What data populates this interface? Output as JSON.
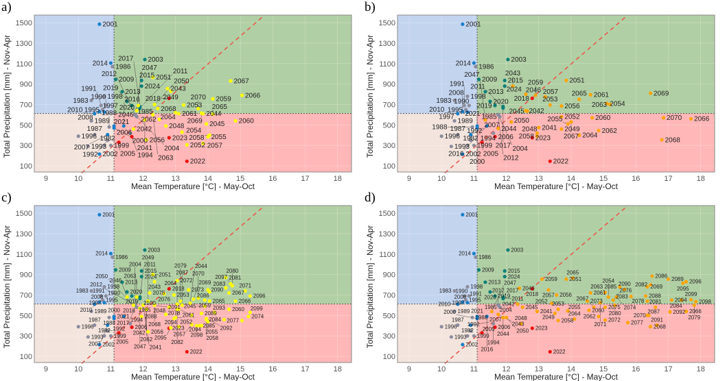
{
  "chart_data": {
    "type": "scatter",
    "xlabel": "Mean Temperature [°C] - May-Oct",
    "ylabel": "Total Precipitation [mm] - Nov-Apr",
    "xlim": [
      8.64,
      18.43
    ],
    "ylim": [
      40,
      1574
    ],
    "xticks": [
      9,
      10,
      11,
      12,
      13,
      14,
      15,
      16,
      17,
      18
    ],
    "yticks": [
      100,
      300,
      500,
      700,
      900,
      1100,
      1300,
      1500
    ],
    "thresholds": {
      "temperature": 11.1,
      "precipitation": 612
    },
    "ref_line": [
      [
        10.1,
        30
      ],
      [
        15.75,
        1574
      ]
    ],
    "colors": {
      "blue": "#1a7fc9",
      "grey": "#8c8c9c",
      "teal": "#0d7f78",
      "red": "#ee1111",
      "yellow": "#ffff00",
      "orange": "#ffa500",
      "quad_wet_cool": "#c3d4ef",
      "quad_wet_warm": "#b1cfa4",
      "quad_dry_cool": "#f3e5de",
      "quad_dry_warm": "#ffb7b7",
      "ref_line": "#e8584a"
    },
    "observed": [
      [
        1982,
        10.8,
        300,
        "grey"
      ],
      [
        1983,
        10.4,
        740,
        "grey"
      ],
      [
        1985,
        11.8,
        580,
        "grey"
      ],
      [
        1986,
        11.05,
        1070,
        "grey"
      ],
      [
        1987,
        10.5,
        405,
        "grey"
      ],
      [
        1988,
        10.95,
        480,
        "grey"
      ],
      [
        1989,
        10.4,
        540,
        "grey"
      ],
      [
        1990,
        10.85,
        690,
        "grey"
      ],
      [
        1991,
        10.7,
        690,
        "grey"
      ],
      [
        1992,
        10.9,
        350,
        "grey"
      ],
      [
        1993,
        10.3,
        290,
        "grey"
      ],
      [
        1994,
        11.6,
        420,
        "grey"
      ],
      [
        1995,
        10.75,
        650,
        "grey"
      ],
      [
        1996,
        10.0,
        390,
        "grey"
      ],
      [
        1997,
        10.8,
        625,
        "blue"
      ],
      [
        1998,
        10.8,
        780,
        "grey"
      ],
      [
        1999,
        11.0,
        300,
        "grey"
      ],
      [
        2000,
        11.1,
        470,
        "blue"
      ],
      [
        2001,
        10.65,
        1485,
        "blue"
      ],
      [
        2002,
        10.65,
        215,
        "blue"
      ],
      [
        2003,
        12.05,
        1140,
        "teal"
      ],
      [
        2004,
        11.75,
        600,
        "blue"
      ],
      [
        2005,
        11.25,
        330,
        "red"
      ],
      [
        2006,
        11.65,
        385,
        "red"
      ],
      [
        2007,
        10.9,
        405,
        "blue"
      ],
      [
        2008,
        10.65,
        630,
        "blue"
      ],
      [
        2009,
        11.15,
        945,
        "teal"
      ],
      [
        2010,
        10.5,
        610,
        "blue"
      ],
      [
        2011,
        11.9,
        665,
        "teal"
      ],
      [
        2012,
        11.75,
        600,
        "grey"
      ],
      [
        2013,
        11.35,
        825,
        "teal"
      ],
      [
        2014,
        11.0,
        1105,
        "blue"
      ],
      [
        2015,
        11.95,
        935,
        "teal"
      ],
      [
        2016,
        11.4,
        490,
        "blue"
      ],
      [
        2017,
        11.9,
        680,
        "teal"
      ],
      [
        2018,
        12.8,
        760,
        "red"
      ],
      [
        2019,
        11.65,
        690,
        "teal"
      ],
      [
        2020,
        11.5,
        730,
        "teal"
      ],
      [
        2021,
        11.1,
        490,
        "blue"
      ],
      [
        2022,
        13.35,
        145,
        "red"
      ],
      [
        2023,
        12.8,
        375,
        "red"
      ],
      [
        2024,
        11.95,
        880,
        "teal"
      ]
    ],
    "panels": [
      {
        "label": "a)",
        "future_color": "yellow",
        "future": [
          [
            2041,
            12.05,
            550
          ],
          [
            2042,
            11.7,
            460
          ],
          [
            2043,
            12.75,
            855
          ],
          [
            2044,
            13.85,
            610
          ],
          [
            2045,
            13.95,
            510
          ],
          [
            2046,
            11.85,
            690
          ],
          [
            2047,
            11.8,
            640
          ],
          [
            2048,
            12.7,
            490
          ],
          [
            2049,
            12.85,
            830
          ],
          [
            2050,
            12.35,
            700
          ],
          [
            2051,
            12.3,
            965
          ],
          [
            2052,
            13.35,
            305
          ],
          [
            2053,
            13.25,
            695
          ],
          [
            2054,
            13.2,
            430
          ],
          [
            2055,
            14.0,
            385
          ],
          [
            2056,
            12.1,
            355
          ],
          [
            2057,
            13.85,
            320
          ],
          [
            2058,
            14.05,
            400
          ],
          [
            2059,
            14.15,
            755
          ],
          [
            2060,
            14.85,
            540
          ],
          [
            2061,
            13.1,
            610
          ],
          [
            2062,
            12.5,
            555
          ],
          [
            2063,
            12.3,
            600
          ],
          [
            2064,
            13.0,
            620
          ],
          [
            2065,
            14.15,
            605
          ],
          [
            2066,
            15.05,
            790
          ],
          [
            2067,
            14.7,
            930
          ],
          [
            2068,
            12.45,
            660
          ],
          [
            2069,
            13.8,
            615
          ],
          [
            2070,
            13.7,
            660
          ]
        ]
      },
      {
        "label": "b)",
        "future_color": "orange",
        "future": [
          [
            2041,
            13.0,
            475
          ],
          [
            2042,
            12.6,
            640
          ],
          [
            2043,
            12.2,
            880
          ],
          [
            2044,
            11.75,
            465
          ],
          [
            2045,
            12.65,
            635
          ],
          [
            2046,
            12.6,
            800
          ],
          [
            2047,
            11.35,
            550
          ],
          [
            2048,
            12.95,
            420
          ],
          [
            2049,
            13.7,
            460
          ],
          [
            2050,
            12.15,
            530
          ],
          [
            2051,
            13.85,
            935
          ],
          [
            2052,
            13.7,
            580
          ],
          [
            2053,
            13.35,
            695
          ],
          [
            2054,
            15.1,
            710
          ],
          [
            2055,
            13.9,
            510
          ],
          [
            2056,
            13.7,
            685
          ],
          [
            2057,
            13.2,
            775
          ],
          [
            2058,
            12.95,
            390
          ],
          [
            2059,
            12.9,
            790
          ],
          [
            2060,
            14.65,
            570
          ],
          [
            2061,
            14.6,
            795
          ],
          [
            2062,
            14.85,
            445
          ],
          [
            2063,
            15.2,
            700
          ],
          [
            2064,
            14.25,
            400
          ],
          [
            2065,
            14.25,
            750
          ],
          [
            2066,
            17.7,
            560
          ],
          [
            2067,
            14.0,
            530
          ],
          [
            2068,
            16.8,
            355
          ],
          [
            2069,
            16.45,
            810
          ],
          [
            2070,
            16.85,
            570
          ]
        ]
      },
      {
        "label": "c)",
        "future_color": "yellow",
        "future": [
          [
            2041,
            12.0,
            600
          ],
          [
            2042,
            12.1,
            560
          ],
          [
            2043,
            12.35,
            830
          ],
          [
            2044,
            13.45,
            620
          ],
          [
            2045,
            13.9,
            590
          ],
          [
            2046,
            11.5,
            680
          ],
          [
            2047,
            11.9,
            570
          ],
          [
            2048,
            12.7,
            510
          ],
          [
            2049,
            12.15,
            640
          ],
          [
            2050,
            11.7,
            600
          ],
          [
            2051,
            12.3,
            900
          ],
          [
            2052,
            13.1,
            390
          ],
          [
            2053,
            12.95,
            700
          ],
          [
            2054,
            12.85,
            380
          ],
          [
            2055,
            14.0,
            440
          ],
          [
            2056,
            12.15,
            340
          ],
          [
            2057,
            13.5,
            410
          ],
          [
            2058,
            13.95,
            460
          ],
          [
            2059,
            13.9,
            650
          ],
          [
            2060,
            14.65,
            560
          ],
          [
            2061,
            13.0,
            480
          ],
          [
            2062,
            12.1,
            560
          ],
          [
            2063,
            11.8,
            680
          ],
          [
            2064,
            13.05,
            610
          ],
          [
            2065,
            14.05,
            640
          ],
          [
            2066,
            14.85,
            640
          ],
          [
            2067,
            14.65,
            720
          ],
          [
            2068,
            12.35,
            600
          ],
          [
            2069,
            13.55,
            660
          ],
          [
            2070,
            13.7,
            670
          ],
          [
            2071,
            15.15,
            740
          ],
          [
            2072,
            13.05,
            840
          ],
          [
            2073,
            13.4,
            750
          ],
          [
            2074,
            15.25,
            490
          ],
          [
            2075,
            12.2,
            720
          ],
          [
            2076,
            12.65,
            710
          ],
          [
            2077,
            15.05,
            450
          ],
          [
            2078,
            12.95,
            470
          ],
          [
            2079,
            13.15,
            640
          ],
          [
            2080,
            14.75,
            790
          ],
          [
            2081,
            14.55,
            870
          ],
          [
            2082,
            13.05,
            560
          ],
          [
            2083,
            14.55,
            770
          ],
          [
            2084,
            14.5,
            460
          ],
          [
            2085,
            13.75,
            400
          ],
          [
            2086,
            14.05,
            730
          ],
          [
            2087,
            13.2,
            600
          ],
          [
            2088,
            11.95,
            490
          ],
          [
            2089,
            13.8,
            520
          ],
          [
            2090,
            14.0,
            750
          ],
          [
            2091,
            13.5,
            500
          ],
          [
            2092,
            13.95,
            470
          ],
          [
            2093,
            14.2,
            530
          ],
          [
            2094,
            13.8,
            400
          ],
          [
            2095,
            13.1,
            560
          ],
          [
            2096,
            15.3,
            690
          ],
          [
            2097,
            14.7,
            810
          ],
          [
            2098,
            13.65,
            400
          ],
          [
            2099,
            15.3,
            530
          ],
          [
            2100,
            12.8,
            580
          ]
        ]
      },
      {
        "label": "d)",
        "future_color": "orange",
        "future": [
          [
            2041,
            12.95,
            540
          ],
          [
            2042,
            12.35,
            610
          ],
          [
            2043,
            11.75,
            510
          ],
          [
            2044,
            11.9,
            480
          ],
          [
            2045,
            12.5,
            580
          ],
          [
            2046,
            12.4,
            765
          ],
          [
            2047,
            11.55,
            540
          ],
          [
            2048,
            12.45,
            420
          ],
          [
            2049,
            13.5,
            520
          ],
          [
            2050,
            12.0,
            480
          ],
          [
            2051,
            13.85,
            855
          ],
          [
            2052,
            13.4,
            620
          ],
          [
            2053,
            13.6,
            560
          ],
          [
            2054,
            15.15,
            680
          ],
          [
            2055,
            13.9,
            545
          ],
          [
            2056,
            13.55,
            700
          ],
          [
            2057,
            13.3,
            750
          ],
          [
            2058,
            13.6,
            450
          ],
          [
            2059,
            13.1,
            855
          ],
          [
            2060,
            14.55,
            550
          ],
          [
            2061,
            14.6,
            720
          ],
          [
            2062,
            14.85,
            490
          ],
          [
            2063,
            15.05,
            725
          ],
          [
            2064,
            14.1,
            465
          ],
          [
            2065,
            14.05,
            865
          ],
          [
            2066,
            17.55,
            540
          ],
          [
            2067,
            14.7,
            580
          ],
          [
            2068,
            16.45,
            390
          ],
          [
            2069,
            16.35,
            780
          ],
          [
            2070,
            16.4,
            500
          ],
          [
            2071,
            14.9,
            625
          ],
          [
            2072,
            15.05,
            455
          ],
          [
            2073,
            14.5,
            640
          ],
          [
            2074,
            15.4,
            680
          ],
          [
            2075,
            15.05,
            580
          ],
          [
            2076,
            15.3,
            650
          ],
          [
            2077,
            15.75,
            430
          ],
          [
            2078,
            16.35,
            640
          ],
          [
            2079,
            17.8,
            600
          ],
          [
            2080,
            15.35,
            600
          ],
          [
            2081,
            16.6,
            580
          ],
          [
            2082,
            16.45,
            800
          ],
          [
            2083,
            15.85,
            685
          ],
          [
            2084,
            17.4,
            650
          ],
          [
            2085,
            15.5,
            780
          ],
          [
            2086,
            16.5,
            885
          ],
          [
            2087,
            16.35,
            500
          ],
          [
            2088,
            16.3,
            690
          ],
          [
            2089,
            17.0,
            855
          ],
          [
            2090,
            15.65,
            755
          ],
          [
            2091,
            16.65,
            405
          ],
          [
            2092,
            17.05,
            535
          ],
          [
            2094,
            17.1,
            650
          ],
          [
            2095,
            17.45,
            815
          ],
          [
            2096,
            17.55,
            830
          ],
          [
            2098,
            17.85,
            635
          ],
          [
            2099,
            17.7,
            655
          ]
        ]
      }
    ]
  }
}
